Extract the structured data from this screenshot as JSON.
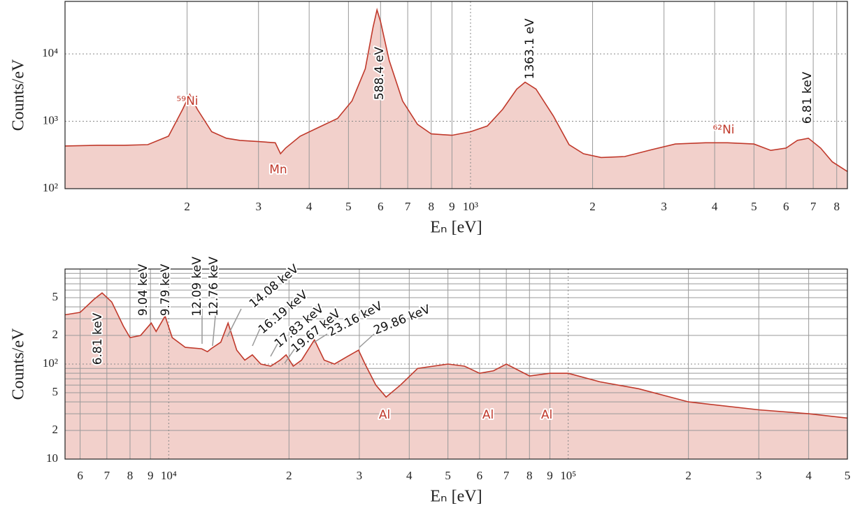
{
  "chart_data": [
    {
      "type": "line",
      "xlabel": "Eₙ [eV]",
      "ylabel": "Counts/eV",
      "xscale": "log",
      "yscale": "log",
      "grid": true,
      "minor_grid": false,
      "color": "#c0392b",
      "fill": "#f2d0cb",
      "xlim": [
        100,
        8500
      ],
      "ylim": [
        100,
        60000
      ],
      "xticks": [
        {
          "value": 200,
          "label": "2"
        },
        {
          "value": 300,
          "label": "3"
        },
        {
          "value": 400,
          "label": "4"
        },
        {
          "value": 500,
          "label": "5"
        },
        {
          "value": 600,
          "label": "6"
        },
        {
          "value": 700,
          "label": "7"
        },
        {
          "value": 800,
          "label": "8"
        },
        {
          "value": 900,
          "label": "9"
        },
        {
          "value": 1000,
          "label": "10³"
        },
        {
          "value": 2000,
          "label": "2"
        },
        {
          "value": 3000,
          "label": "3"
        },
        {
          "value": 4000,
          "label": "4"
        },
        {
          "value": 5000,
          "label": "5"
        },
        {
          "value": 6000,
          "label": "6"
        },
        {
          "value": 7000,
          "label": "7"
        },
        {
          "value": 8000,
          "label": "8"
        }
      ],
      "yticks": [
        {
          "value": 100,
          "label": "10²"
        },
        {
          "value": 1000,
          "label": "10³"
        },
        {
          "value": 10000,
          "label": "10⁴"
        }
      ],
      "x": [
        100,
        120,
        140,
        160,
        180,
        195,
        203,
        212,
        230,
        250,
        270,
        300,
        330,
        340,
        350,
        380,
        420,
        470,
        510,
        550,
        575,
        588,
        600,
        630,
        680,
        740,
        800,
        900,
        1000,
        1100,
        1200,
        1300,
        1363,
        1450,
        1600,
        1750,
        1900,
        2100,
        2400,
        2800,
        3200,
        3800,
        4300,
        5000,
        5500,
        6000,
        6400,
        6810,
        7300,
        7800,
        8500
      ],
      "values": [
        430,
        440,
        440,
        450,
        600,
        1500,
        2500,
        1500,
        700,
        560,
        520,
        500,
        480,
        330,
        400,
        600,
        800,
        1100,
        2000,
        6000,
        25000,
        45000,
        30000,
        8000,
        2000,
        900,
        650,
        620,
        700,
        850,
        1500,
        3000,
        3800,
        3000,
        1200,
        450,
        330,
        290,
        300,
        380,
        460,
        480,
        480,
        460,
        370,
        400,
        520,
        560,
        400,
        250,
        180
      ],
      "annotations": [
        "⁵⁹Ni",
        "Mn",
        "588.4 eV",
        "1363.1 eV",
        "⁶²Ni",
        "6.81 keV"
      ]
    },
    {
      "type": "line",
      "xlabel": "Eₙ [eV]",
      "ylabel": "Counts/eV",
      "xscale": "log",
      "yscale": "log",
      "grid": true,
      "minor_grid": true,
      "color": "#c0392b",
      "fill": "#f2d0cb",
      "xlim": [
        5500,
        500000
      ],
      "ylim": [
        10,
        1000
      ],
      "xticks": [
        {
          "value": 6000,
          "label": "6"
        },
        {
          "value": 7000,
          "label": "7"
        },
        {
          "value": 8000,
          "label": "8"
        },
        {
          "value": 9000,
          "label": "9"
        },
        {
          "value": 10000,
          "label": "10⁴"
        },
        {
          "value": 20000,
          "label": "2"
        },
        {
          "value": 30000,
          "label": "3"
        },
        {
          "value": 40000,
          "label": "4"
        },
        {
          "value": 50000,
          "label": "5"
        },
        {
          "value": 60000,
          "label": "6"
        },
        {
          "value": 70000,
          "label": "7"
        },
        {
          "value": 80000,
          "label": "8"
        },
        {
          "value": 90000,
          "label": "9"
        },
        {
          "value": 100000,
          "label": "10⁵"
        },
        {
          "value": 200000,
          "label": "2"
        },
        {
          "value": 300000,
          "label": "3"
        },
        {
          "value": 400000,
          "label": "4"
        },
        {
          "value": 500000,
          "label": "5"
        }
      ],
      "yticks": [
        10,
        {
          "value": 20,
          "label": "2"
        },
        {
          "value": 50,
          "label": "5"
        },
        {
          "value": 100,
          "label": "10²"
        },
        {
          "value": 200,
          "label": "2"
        },
        {
          "value": 500,
          "label": "5"
        }
      ],
      "x": [
        5500,
        6000,
        6500,
        6810,
        7200,
        7700,
        8000,
        8500,
        9040,
        9300,
        9790,
        10200,
        11000,
        12090,
        12500,
        12760,
        13500,
        14080,
        14800,
        15500,
        16190,
        17000,
        18000,
        19000,
        19670,
        20500,
        21500,
        23160,
        24500,
        26000,
        28000,
        29860,
        31000,
        33000,
        35000,
        38000,
        42000,
        50000,
        55000,
        60000,
        65000,
        70000,
        80000,
        90000,
        100000,
        120000,
        150000,
        200000,
        300000,
        400000,
        500000
      ],
      "values": [
        330,
        350,
        480,
        560,
        450,
        250,
        190,
        200,
        270,
        220,
        320,
        190,
        150,
        145,
        135,
        145,
        170,
        270,
        140,
        110,
        125,
        100,
        95,
        110,
        125,
        95,
        110,
        180,
        110,
        100,
        120,
        140,
        100,
        60,
        45,
        60,
        90,
        100,
        95,
        80,
        85,
        100,
        75,
        80,
        80,
        65,
        55,
        40,
        33,
        30,
        27
      ],
      "annotations": [
        "6.81 keV",
        "9.04 keV",
        "9.79 keV",
        "12.09 keV",
        "12.76 keV",
        "14.08 keV",
        "16.19 keV",
        "17.83 keV",
        "19.67 keV",
        "23.16 keV",
        "29.86 keV",
        "Al",
        "Al",
        "Al"
      ]
    }
  ]
}
